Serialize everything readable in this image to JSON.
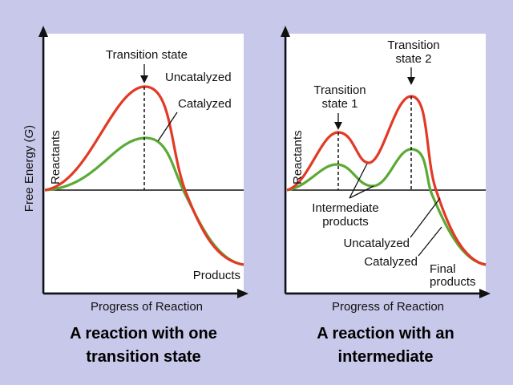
{
  "colors": {
    "background": "#c8c8ea",
    "uncatalyzed": "#e23a25",
    "catalyzed": "#5aaa35"
  },
  "y_axis_label": "Free Energy (G)",
  "panels": [
    {
      "x_axis_label": "Progress of Reaction",
      "reactants_label": "Reactants",
      "products_label": "Products",
      "transition_label": "Transition state",
      "uncatalyzed_label": "Uncatalyzed",
      "catalyzed_label": "Catalyzed",
      "caption_line1": "A reaction with one",
      "caption_line2": "transition state"
    },
    {
      "x_axis_label": "Progress of Reaction",
      "reactants_label": "Reactants",
      "ts1_line1": "Transition",
      "ts1_line2": "state 1",
      "ts2_line1": "Transition",
      "ts2_line2": "state 2",
      "intermediate_line1": "Intermediate",
      "intermediate_line2": "products",
      "uncatalyzed_label": "Uncatalyzed",
      "catalyzed_label": "Catalyzed",
      "final_line1": "Final",
      "final_line2": "products",
      "caption_line1": "A reaction with an",
      "caption_line2": "intermediate"
    }
  ]
}
